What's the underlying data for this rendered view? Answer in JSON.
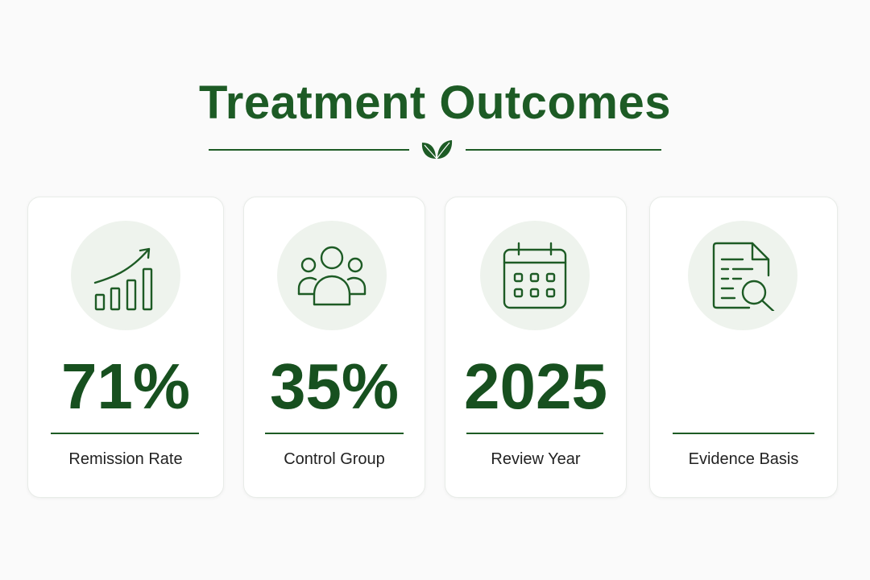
{
  "title": "Treatment Outcomes",
  "colors": {
    "accent": "#1d5b25",
    "value_text": "#17501f",
    "icon_bg": "#eef3ed",
    "card_bg": "#ffffff",
    "page_bg": "#fafafa"
  },
  "header": {
    "divider_icon": "leaf-icon"
  },
  "cards": [
    {
      "icon": "growth-chart-icon",
      "value": "71%",
      "label": "Remission Rate"
    },
    {
      "icon": "group-icon",
      "value": "35%",
      "label": "Control Group"
    },
    {
      "icon": "calendar-icon",
      "value": "2025",
      "label": "Review Year"
    },
    {
      "icon": "document-search-icon",
      "value": "",
      "label": "Evidence Basis"
    }
  ]
}
